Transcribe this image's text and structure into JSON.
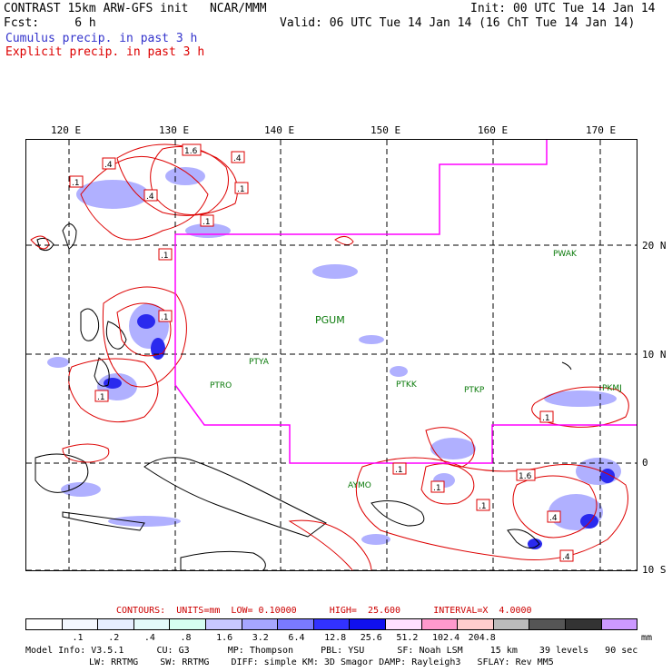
{
  "header": {
    "title_line": "CONTRAST 15km ARW-GFS init   NCAR/MMM",
    "init_line": "Init: 00 UTC Tue 14 Jan 14",
    "fcst_line": "Fcst:     6 h",
    "valid_line": "Valid: 06 UTC Tue 14 Jan 14 (16 ChT Tue 14 Jan 14)",
    "cumulus_line": "Cumulus precip. in past 3 h",
    "explicit_line": "Explicit precip. in past 3 h",
    "cumulus_color": "#3333cc",
    "explicit_color": "#dd0000"
  },
  "map": {
    "lon_labels": [
      "120 E",
      "130 E",
      "140 E",
      "150 E",
      "160 E",
      "170 E"
    ],
    "lat_labels": [
      "20 N",
      "10 N",
      "0",
      "10 S"
    ],
    "stations": [
      "PWAK",
      "PGUM",
      "PTYA",
      "PTRO",
      "PTKK",
      "PTKP",
      "PKMJ",
      "AYMO"
    ],
    "contour_labels": [
      ".4",
      "1.6",
      ".4",
      ".1",
      ".4",
      ".1",
      ".1",
      ".1",
      ".1",
      ".1",
      ".1",
      ".1",
      "1.6",
      ".4",
      ".1",
      ".1",
      ".4"
    ],
    "boundary_color": "#ff00ff",
    "contour_color": "#dd0000",
    "shade_color": "#6666ff"
  },
  "contours_line": {
    "text": "CONTOURS:  UNITS=mm  LOW= 0.10000      HIGH=  25.600      INTERVAL=X  4.0000",
    "color": "#cc0000"
  },
  "colorbar": {
    "colors": [
      "#ffffff",
      "#f4f8ff",
      "#e6eeff",
      "#e4fafa",
      "#d6fff0",
      "#c8c8ff",
      "#a6a6ff",
      "#7a7aff",
      "#3232ff",
      "#1010ee",
      "#ffe0ff",
      "#ff99cc",
      "#ffcccc",
      "#bbbbbb",
      "#555555",
      "#333333",
      "#cc99ff"
    ],
    "labels": [
      ".1",
      ".2",
      ".4",
      ".8",
      "1.6",
      "3.2",
      "6.4",
      "12.8",
      "25.6",
      "51.2",
      "102.4",
      "204.8"
    ],
    "unit": "mm"
  },
  "model_info": {
    "line1": "Model Info: V3.5.1      CU: G3       MP: Thompson     PBL: YSU      SF: Noah LSM     15 km    39 levels   90 sec",
    "line2": "LW: RRTMG    SW: RRTMG    DIFF: simple KM: 3D Smagor DAMP: Rayleigh3   SFLAY: Rev MM5"
  }
}
